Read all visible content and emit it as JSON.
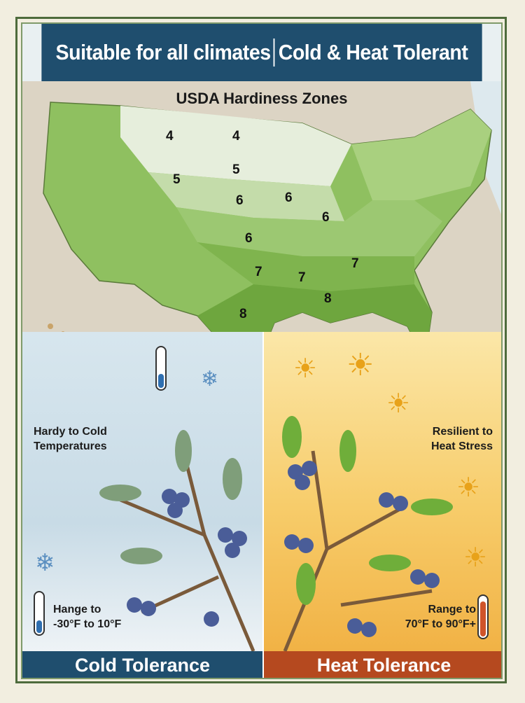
{
  "header": {
    "left": "Suitable for all climates",
    "right": "Cold & Heat Tolerant"
  },
  "map": {
    "title": "USDA Hardiness Zones",
    "zones": [
      "4",
      "4",
      "5",
      "5",
      "6",
      "6",
      "6",
      "6",
      "7",
      "7",
      "7",
      "8",
      "8"
    ]
  },
  "cold": {
    "heading_line1": "Hardy to Cold",
    "heading_line2": "Temperatures",
    "range_line1": "Hange to",
    "range_line2": "-30°F to 10°F",
    "banner": "Cold Tolerance",
    "color": "#1f4e6e"
  },
  "heat": {
    "heading_line1": "Resilient to",
    "heading_line2": "Heat Stress",
    "range_line1": "Range to",
    "range_line2": "70°F to 90°F+",
    "banner": "Heat Tolerance",
    "color": "#b5491f"
  }
}
